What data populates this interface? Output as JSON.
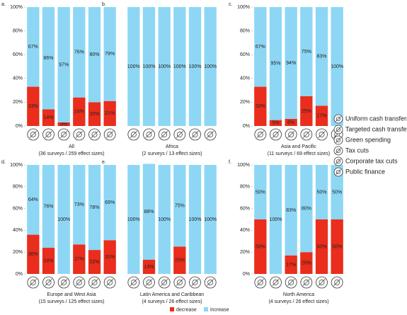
{
  "chart_data": [
    {
      "type": "stacked-bar",
      "label": "a.",
      "title": "All",
      "subtitle": "(36 surveys / 259 effect sizes)",
      "categories": [
        "Uniform cash transfers",
        "Targeted cash transfers",
        "Green spending",
        "Tax cuts",
        "Corporate tax cuts",
        "Public finance"
      ],
      "series": [
        {
          "name": "decrease",
          "color": "#ea2d1c",
          "values": [
            33,
            14,
            3,
            24,
            20,
            21
          ],
          "value_labels": [
            "33%",
            "14%",
            "3%",
            "24%",
            "20%",
            "21%"
          ]
        },
        {
          "name": "increase",
          "color": "#8dd7f5",
          "values": [
            67,
            86,
            97,
            76,
            80,
            79
          ],
          "value_labels": [
            "67%",
            "86%",
            "97%",
            "76%",
            "80%",
            "79%"
          ]
        }
      ],
      "ylim": [
        0,
        100
      ],
      "yticks": [
        {
          "value": 0,
          "label": "0%"
        },
        {
          "value": 20,
          "label": "20%"
        },
        {
          "value": 40,
          "label": "40%"
        },
        {
          "value": 60,
          "label": "60%"
        },
        {
          "value": 80,
          "label": "80%"
        },
        {
          "value": 100,
          "label": "100%"
        }
      ]
    },
    {
      "type": "stacked-bar",
      "label": "b.",
      "title": "Africa",
      "subtitle": "(2 surveys / 13 effect sizes)",
      "categories": [
        "Uniform cash transfers",
        "Targeted cash transfers",
        "Green spending",
        "Tax cuts",
        "Corporate tax cuts",
        "Public finance"
      ],
      "series": [
        {
          "name": "decrease",
          "color": "#ea2d1c",
          "values": [
            0,
            0,
            0,
            0,
            0,
            0
          ],
          "value_labels": [
            null,
            null,
            null,
            null,
            null,
            null
          ]
        },
        {
          "name": "increase",
          "color": "#8dd7f5",
          "values": [
            100,
            100,
            100,
            100,
            100,
            100
          ],
          "value_labels": [
            "100%",
            "100%",
            "100%",
            "100%",
            "100%",
            "100%"
          ]
        }
      ],
      "ylim": [
        0,
        100
      ]
    },
    {
      "type": "stacked-bar",
      "label": "c.",
      "title": "Asia and Pacific",
      "subtitle": "(11 surveys / 69 effect sizes)",
      "categories": [
        "Uniform cash transfers",
        "Targeted cash transfers",
        "Green spending",
        "Tax cuts",
        "Corporate tax cuts",
        "Public finance"
      ],
      "series": [
        {
          "name": "decrease",
          "color": "#ea2d1c",
          "values": [
            33,
            5,
            6,
            25,
            17,
            0
          ],
          "value_labels": [
            "33%",
            "5%",
            "6%",
            "25%",
            "17%",
            null
          ]
        },
        {
          "name": "increase",
          "color": "#8dd7f5",
          "values": [
            67,
            95,
            94,
            75,
            83,
            100
          ],
          "value_labels": [
            "67%",
            "95%",
            "94%",
            "75%",
            "83%",
            "100%"
          ]
        }
      ],
      "ylim": [
        0,
        100
      ],
      "yticks": [
        {
          "value": 0,
          "label": "0%"
        },
        {
          "value": 20,
          "label": "20%"
        },
        {
          "value": 40,
          "label": "40%"
        },
        {
          "value": 60,
          "label": "60%"
        },
        {
          "value": 80,
          "label": "80%"
        },
        {
          "value": 100,
          "label": "100%"
        }
      ]
    },
    {
      "type": "stacked-bar",
      "label": "d.",
      "title": "Europe and West Asia",
      "subtitle": "(15 surveys / 125 effect sizes)",
      "categories": [
        "Uniform cash transfers",
        "Targeted cash transfers",
        "Green spending",
        "Tax cuts",
        "Corporate tax cuts",
        "Public finance"
      ],
      "series": [
        {
          "name": "decrease",
          "color": "#ea2d1c",
          "values": [
            36,
            24,
            0,
            27,
            22,
            31
          ],
          "value_labels": [
            "36%",
            "24%",
            null,
            "27%",
            "22%",
            "31%"
          ]
        },
        {
          "name": "increase",
          "color": "#8dd7f5",
          "values": [
            64,
            76,
            100,
            73,
            78,
            69
          ],
          "value_labels": [
            "64%",
            "76%",
            "100%",
            "73%",
            "78%",
            "69%"
          ]
        }
      ],
      "ylim": [
        0,
        100
      ],
      "yticks": [
        {
          "value": 0,
          "label": "0%"
        },
        {
          "value": 20,
          "label": "20%"
        },
        {
          "value": 40,
          "label": "40%"
        },
        {
          "value": 60,
          "label": "60%"
        },
        {
          "value": 80,
          "label": "80%"
        },
        {
          "value": 100,
          "label": "100%"
        }
      ]
    },
    {
      "type": "stacked-bar",
      "label": "e.",
      "title": "Latin America and Caribbean",
      "subtitle": "(4 surveys / 26 effect sizes)",
      "categories": [
        "Uniform cash transfers",
        "Targeted cash transfers",
        "Green spending",
        "Tax cuts",
        "Corporate tax cuts",
        "Public finance"
      ],
      "series": [
        {
          "name": "decrease",
          "color": "#ea2d1c",
          "values": [
            0,
            13,
            0,
            25,
            0,
            0
          ],
          "value_labels": [
            null,
            "13%",
            null,
            "25%",
            null,
            null
          ]
        },
        {
          "name": "increase",
          "color": "#8dd7f5",
          "values": [
            100,
            88,
            100,
            75,
            100,
            100
          ],
          "value_labels": [
            "100%",
            "88%",
            "100%",
            "75%",
            "100%",
            "100%"
          ]
        }
      ],
      "ylim": [
        0,
        100
      ]
    },
    {
      "type": "stacked-bar",
      "label": "f.",
      "title": "North America",
      "subtitle": "(4 surveys / 26 effect sizes)",
      "categories": [
        "Uniform cash transfers",
        "Targeted cash transfers",
        "Green spending",
        "Tax cuts",
        "Corporate tax cuts",
        "Public finance"
      ],
      "series": [
        {
          "name": "decrease",
          "color": "#ea2d1c",
          "values": [
            50,
            0,
            17,
            20,
            50,
            50
          ],
          "value_labels": [
            "50%",
            null,
            "17%",
            "20%",
            "50%",
            "50%"
          ]
        },
        {
          "name": "increase",
          "color": "#8dd7f5",
          "values": [
            50,
            100,
            83,
            80,
            50,
            50
          ],
          "value_labels": [
            "50%",
            "100%",
            "83%",
            "80%",
            "50%",
            "50%"
          ]
        }
      ],
      "ylim": [
        0,
        100
      ],
      "yticks": [
        {
          "value": 0,
          "label": "0%"
        },
        {
          "value": 20,
          "label": "20%"
        },
        {
          "value": 40,
          "label": "40%"
        },
        {
          "value": 60,
          "label": "60%"
        },
        {
          "value": 80,
          "label": "80%"
        },
        {
          "value": 100,
          "label": "100%"
        }
      ]
    }
  ]
}
